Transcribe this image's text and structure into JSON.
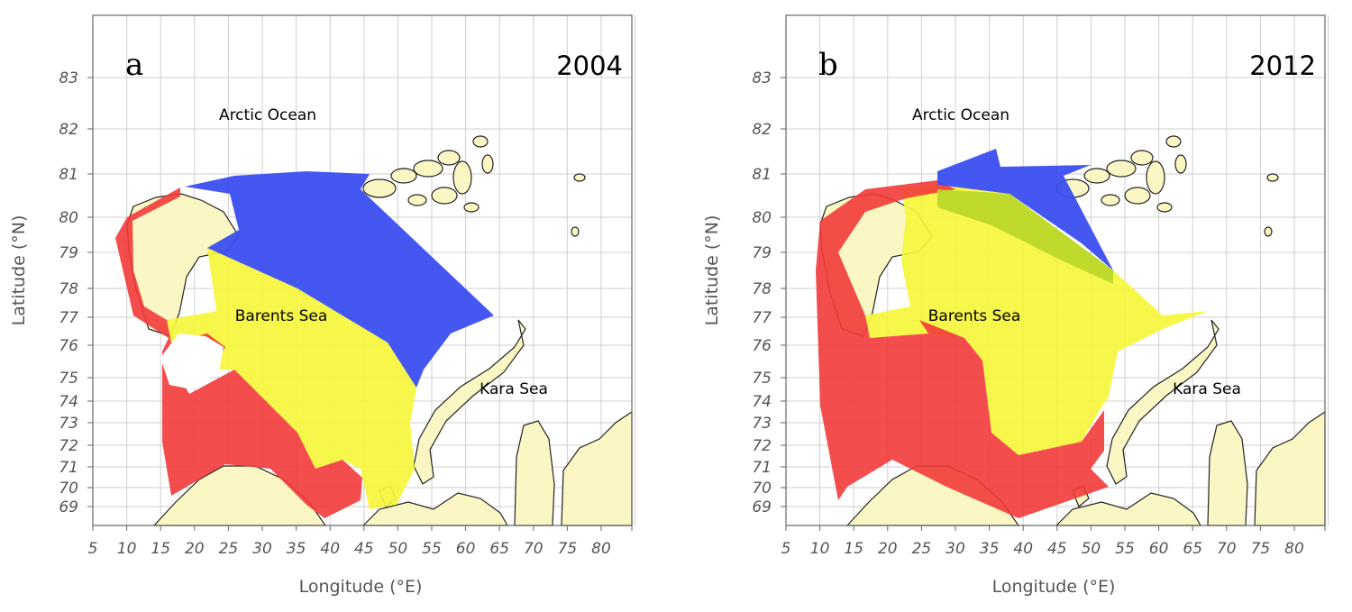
{
  "figure": {
    "y_axis_label": "Latitude (°N)",
    "x_axis_label": "Longitude (°E)",
    "lat_ticks": [
      83,
      82,
      81,
      80,
      79,
      78,
      77,
      76,
      75,
      74,
      73,
      72,
      71,
      70,
      69
    ],
    "lon_ticks": [
      5,
      10,
      15,
      20,
      25,
      30,
      35,
      40,
      45,
      50,
      55,
      60,
      65,
      70,
      75,
      80
    ],
    "colors": {
      "land": "#fbf7c4",
      "red": "#f23a3a",
      "blue": "#3a4ff0",
      "yellow": "#f6f63c",
      "overlap": "#b8d62a",
      "grid": "#cfcfcf"
    }
  },
  "panels": [
    {
      "letter": "a",
      "year": "2004",
      "labels": {
        "arctic": "Arctic Ocean",
        "barents": "Barents Sea",
        "kara": "Kara Sea"
      }
    },
    {
      "letter": "b",
      "year": "2012",
      "labels": {
        "arctic": "Arctic Ocean",
        "barents": "Barents Sea",
        "kara": "Kara Sea"
      }
    }
  ]
}
